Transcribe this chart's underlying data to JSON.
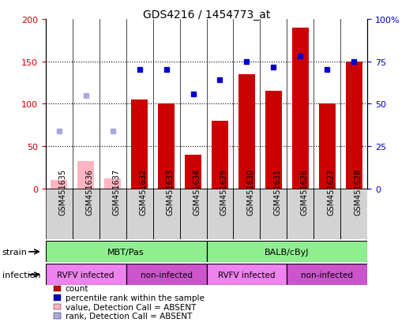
{
  "title": "GDS4216 / 1454773_at",
  "samples": [
    "GSM451635",
    "GSM451636",
    "GSM451637",
    "GSM451632",
    "GSM451633",
    "GSM451634",
    "GSM451629",
    "GSM451630",
    "GSM451631",
    "GSM451626",
    "GSM451627",
    "GSM451628"
  ],
  "count_values": [
    null,
    null,
    null,
    105,
    100,
    40,
    80,
    135,
    115,
    190,
    100,
    150
  ],
  "count_absent": [
    10,
    33,
    12,
    null,
    null,
    null,
    null,
    null,
    null,
    null,
    null,
    null
  ],
  "rank_values_left_scale": [
    null,
    null,
    null,
    140,
    140,
    112,
    128,
    150,
    143,
    156,
    140,
    150
  ],
  "rank_absent_left_scale": [
    68,
    110,
    68,
    null,
    null,
    null,
    null,
    null,
    null,
    null,
    null,
    null
  ],
  "strain_groups": [
    {
      "label": "MBT/Pas",
      "start": 0,
      "end": 6,
      "color": "#90ee90"
    },
    {
      "label": "BALB/cByJ",
      "start": 6,
      "end": 12,
      "color": "#90ee90"
    }
  ],
  "infection_groups": [
    {
      "label": "RVFV infected",
      "start": 0,
      "end": 3,
      "color": "#ee82ee"
    },
    {
      "label": "non-infected",
      "start": 3,
      "end": 6,
      "color": "#cc55cc"
    },
    {
      "label": "RVFV infected",
      "start": 6,
      "end": 9,
      "color": "#ee82ee"
    },
    {
      "label": "non-infected",
      "start": 9,
      "end": 12,
      "color": "#cc55cc"
    }
  ],
  "ylim_left": [
    0,
    200
  ],
  "ylim_right": [
    0,
    100
  ],
  "yticks_left": [
    0,
    50,
    100,
    150,
    200
  ],
  "ytick_labels_left": [
    "0",
    "50",
    "100",
    "150",
    "200"
  ],
  "yticks_right": [
    0,
    25,
    50,
    75,
    100
  ],
  "ytick_labels_right": [
    "0",
    "25",
    "50",
    "75",
    "100%"
  ],
  "bar_color_present": "#cc0000",
  "bar_color_absent": "#ffb6c1",
  "dot_color_present": "#0000cc",
  "dot_color_absent": "#aaaadd",
  "background_color": "#ffffff",
  "legend_items": [
    {
      "label": "count",
      "color": "#cc0000"
    },
    {
      "label": "percentile rank within the sample",
      "color": "#0000cc"
    },
    {
      "label": "value, Detection Call = ABSENT",
      "color": "#ffb6c1"
    },
    {
      "label": "rank, Detection Call = ABSENT",
      "color": "#aaaadd"
    }
  ]
}
